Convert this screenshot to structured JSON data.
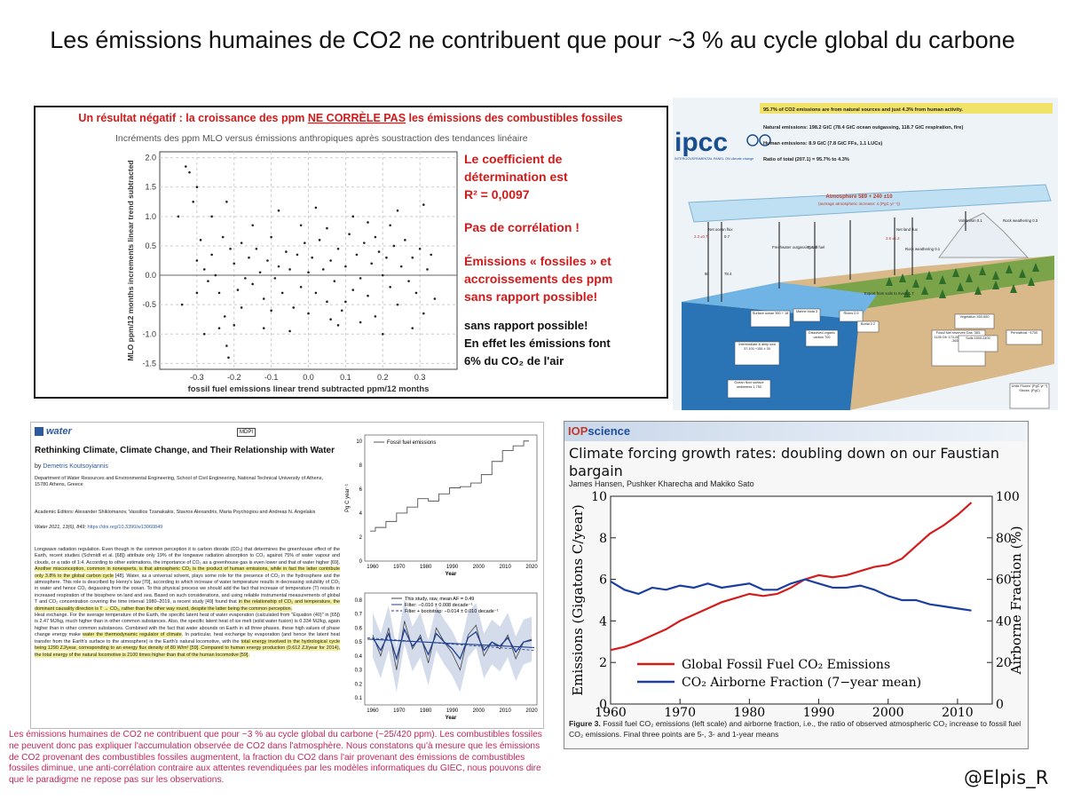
{
  "page_title": "Les émissions humaines de CO2 ne contribuent que pour ~3 % au cycle global du carbone",
  "colors": {
    "red_text": "#d11a1a",
    "pink_text": "#c0265a",
    "iop_red": "#d31d1d",
    "iop_blue": "#1b3fa0",
    "water_blue": "#2c5aa0"
  },
  "scatter_panel": {
    "heading_part1": "Un résultat négatif : la croissance des ppm ",
    "heading_underlined": "NE CORRÈLE PAS",
    "heading_part2": " les émissions des combustibles fossiles",
    "subheading": "Incréments des ppm MLO   versus émissions anthropiques après soustraction des tendances linéaire",
    "red_notes": [
      "Le coefficient de",
      "détermination est",
      "R² = 0,0097",
      "Pas de corrélation !",
      "Émissions « fossiles » et",
      "accroissements des ppm",
      "sans rapport possible!"
    ],
    "black_notes": [
      "sans rapport possible!",
      "En effet les émissions font",
      "6% du CO₂ de l'air"
    ]
  },
  "ipcc_panel": {
    "logo": "ipcc",
    "logo_sub": "INTERGOVERNMENTAL PANEL ON climate change",
    "lines": [
      "95.7% of CO2 emissions are from natural sources and just 4.3% from human activity.",
      "Natural emissions:  198.2 GtC (78.4 GtC ocean outgassing, 118.7 GtC respiration, fire)",
      "Human emissions:   8.9 GtC (7.8 GtC FFs, 1.1 LUCs)",
      "Ratio of total (207.1) = 95.7% to 4.3%"
    ],
    "atmosphere_label": "Atmosphere 589 + 240 ±10",
    "atmosphere_sub": "(average atmospheric increase: 4 (PgC yr⁻¹))",
    "box_labels": [
      "Surface ocean 900 + 18",
      "Intermediate & deep sea 37,100 +155 ± 30",
      "Ocean floor surface sediments 1,750",
      "Marine biota 3",
      "Dissolved organic carbon 700",
      "Rivers 0.9",
      "Burial 0.2",
      "Fossil fuel reserves Gas: 383-1135 Oil: 173-264 Coal: 446-541 -365 ± 30",
      "Vegetation 450-650",
      "Soils 1500-2400",
      "Permafrost ~1700",
      "Units Fluxes: (PgC yr⁻¹) Stocks: (PgC)"
    ],
    "flux_labels": [
      "Net ocean flux",
      "2.3 ±0.7",
      "0.7",
      "80",
      "78.4",
      "Fossil fuel",
      "Net land flux",
      "2.6 ±1.2",
      "Volcanism 0.1",
      "Rock weathering 0.3",
      "Freshwater outgassing 1.0",
      "Export from soils to rivers 1.7",
      "Rock weathering 0.1"
    ]
  },
  "water_panel": {
    "journal": "water",
    "publisher": "MDPI",
    "title": "Rethinking Climate, Climate Change, and Their Relationship with Water",
    "author_prefix": "by ",
    "author": "Demetris Koutsoyiannis",
    "affiliation": "Department of Water Resources and Environmental Engineering, School of Civil Engineering, National Technical University of Athens, 15780 Athens, Greece",
    "editors": "Academic Editors: Alexander Shiklomanov, Vassilios Tzanakakis, Stavros Alexandris, Maria Psychogiou and Andreas N. Angelakis",
    "citation_prefix": "Water 2021, 13(6), 849; ",
    "citation_link": "https://doi.org/10.3390/w13060849",
    "body_1": "Longwave radiation regulation. Even though in the common perception it is carbon dioxide (CO₂) that determines the greenhouse effect of the Earth, recent studies (Schmidt et al. [68]) attribute only 19% of the longwave radiation absorption to CO₂ against 75% of water vapour and clouds, or a ratio of 1:4. According to other estimations, the importance of CO₂ as a greenhouse gas is even lower and that of water higher [69]. ",
    "body_1_hl": "Another misconception, common in nonexperts, is that atmospheric CO₂ is the product of human emissions, while in fact the latter contribute only 3.8% to the global carbon cycle",
    "body_1_end": " [48]. Water, as a universal solvent, plays some role for the presence of CO₂ in the hydrosphere and the atmosphere. This role is described by Henry's law [70], according to which increase of water temperature results in decreasing solubility of CO₂ in water and hence CO₂ degassing from the ocean. To this physical process we should add the fact that increase of temperature (T) results in increased respiration of the biosphere on land and sea. Based on such considerations, and using reliable instrumental measurements of global T and CO₂ concentration covering the time interval 1980–2019, a recent study [49] found that ",
    "body_2_hl": "in the relationship of CO₂ and temperature, the dominant causality direction is T → CO₂, rather than the other way round, despite the latter being the common perception.",
    "body_3": "Heat exchange. For the average temperature of the Earth, the specific latent heat of water evaporation (calculated from \"Equation (40)\" in [65]) is 2.47 MJ/kg, much higher than in other common substances. Also, the specific latent heat of ice melt (solid water fusion) is 0.334 MJ/kg, again higher than in other common substances. Combined with the fact that water abounds on Earth in all three phases, these high values of phase change energy make ",
    "body_3_hl": "water the thermodynamic regulator of climate",
    "body_3_end": ". In particular, heat exchange by evaporation (and hence the latent heat transfer from the Earth's surface to the atmosphere) is the Earth's natural locomotive, with the ",
    "body_4_hl": "total energy involved in the hydrological cycle being 1290 ZJ/year, corresponding to an energy flux density of 80 W/m² [59]. Compared to human energy production (0.612 ZJ/year for 2014), the total energy of the natural locomotive is 2100 times higher than that of the human locomotive [59].",
    "top_chart": {
      "legend": "Fossil fuel emissions",
      "ylabel": "Pg C year⁻¹",
      "xlabel": "Year",
      "yticks": [
        "0",
        "2",
        "4",
        "6",
        "8",
        "10"
      ],
      "xticks": [
        "1960",
        "1970",
        "1980",
        "1990",
        "2000",
        "2010",
        "2020"
      ]
    },
    "bottom_chart": {
      "legend": [
        "This study, raw, mean AF = 0.49",
        "Filter: −0.010 ± 0.008 decade⁻¹",
        "Filter + bootstrap: −0.014 ± 0.010 decade⁻¹"
      ],
      "xlabel": "Year",
      "yticks": [
        "0.1",
        "0.2",
        "0.3",
        "0.4",
        "0.5",
        "0.6",
        "0.7",
        "0.8"
      ],
      "xticks": [
        "1960",
        "1970",
        "1980",
        "1990",
        "2000",
        "2010",
        "2020"
      ]
    }
  },
  "iop_panel": {
    "logo_pre": "IOP",
    "logo_post": "science",
    "title": "Climate forcing growth rates: doubling down on our Faustian bargain",
    "authors": "James Hansen, Pushker Kharecha and Makiko Sato",
    "legend_red": "Global Fossil Fuel CO₂ Emissions",
    "legend_blue": "CO₂ Airborne Fraction (7−year mean)",
    "ylabel_left": "Emissions (Gigatons C/year)",
    "ylabel_right": "Airborne Fraction (%)",
    "caption_bold": "Figure 3.",
    "caption": " Fossil fuel CO₂ emissions (left scale) and airborne fraction, i.e., the ratio of observed atmospheric CO₂ increase to fossil fuel CO₂ emissions. Final three points are 5-, 3- and 1-year means"
  },
  "chart_data": [
    {
      "type": "scatter",
      "title": "Incréments des ppm MLO   versus émissions anthropiques après soustraction des tendances linéaire",
      "xlabel": "fossil fuel emissions linear trend subtracted ppm/12 months",
      "ylabel": "MLO ppm/12 months increments linear trend subtracted",
      "xlim": [
        -0.4,
        0.4
      ],
      "ylim": [
        -1.6,
        2.1
      ],
      "xticks": [
        "-0.3",
        "-0.2",
        "-0.1",
        "0.0",
        "0.1",
        "0.2",
        "0.3"
      ],
      "yticks": [
        "-1.5",
        "-1.0",
        "-0.5",
        "0.0",
        "0.5",
        "1.0",
        "1.5",
        "2.0"
      ],
      "points": [
        [
          -0.33,
          1.85
        ],
        [
          -0.32,
          1.75
        ],
        [
          -0.31,
          1.25
        ],
        [
          -0.3,
          1.5
        ],
        [
          -0.29,
          0.6
        ],
        [
          -0.3,
          0.25
        ],
        [
          -0.28,
          0.1
        ],
        [
          -0.27,
          -0.1
        ],
        [
          -0.26,
          0.35
        ],
        [
          -0.25,
          0.0
        ],
        [
          -0.24,
          -0.3
        ],
        [
          -0.23,
          0.65
        ],
        [
          -0.225,
          -0.7
        ],
        [
          -0.22,
          -1.2
        ],
        [
          -0.215,
          -1.4
        ],
        [
          -0.21,
          0.45
        ],
        [
          -0.2,
          0.2
        ],
        [
          -0.19,
          -0.25
        ],
        [
          -0.18,
          0.55
        ],
        [
          -0.17,
          -0.05
        ],
        [
          -0.16,
          0.3
        ],
        [
          -0.15,
          -0.15
        ],
        [
          -0.14,
          0.45
        ],
        [
          -0.13,
          0.05
        ],
        [
          -0.12,
          -0.4
        ],
        [
          -0.11,
          0.25
        ],
        [
          -0.1,
          0.65
        ],
        [
          -0.09,
          -0.05
        ],
        [
          -0.08,
          0.15
        ],
        [
          -0.07,
          -0.3
        ],
        [
          -0.06,
          0.4
        ],
        [
          -0.05,
          0.1
        ],
        [
          -0.04,
          -0.55
        ],
        [
          -0.03,
          0.35
        ],
        [
          -0.02,
          -0.2
        ],
        [
          -0.01,
          0.55
        ],
        [
          0.0,
          0.05
        ],
        [
          0.0,
          -0.65
        ],
        [
          0.01,
          0.3
        ],
        [
          0.02,
          -0.3
        ],
        [
          0.03,
          0.6
        ],
        [
          0.04,
          0.1
        ],
        [
          0.05,
          -0.45
        ],
        [
          0.06,
          0.25
        ],
        [
          0.07,
          -0.1
        ],
        [
          0.08,
          0.45
        ],
        [
          0.09,
          -0.6
        ],
        [
          0.1,
          0.15
        ],
        [
          0.11,
          0.7
        ],
        [
          0.12,
          -0.25
        ],
        [
          0.13,
          0.35
        ],
        [
          0.14,
          -0.05
        ],
        [
          0.15,
          0.55
        ],
        [
          0.16,
          -0.35
        ],
        [
          0.17,
          0.2
        ],
        [
          0.18,
          -0.7
        ],
        [
          0.19,
          0.4
        ],
        [
          0.2,
          0.0
        ],
        [
          0.21,
          0.3
        ],
        [
          0.22,
          -0.2
        ],
        [
          0.23,
          0.5
        ],
        [
          0.24,
          -0.5
        ],
        [
          0.25,
          0.15
        ],
        [
          0.26,
          0.6
        ],
        [
          0.27,
          -0.1
        ],
        [
          0.28,
          0.3
        ],
        [
          0.29,
          -0.3
        ],
        [
          0.3,
          0.45
        ],
        [
          0.31,
          -0.65
        ],
        [
          0.32,
          0.1
        ],
        [
          0.33,
          0.35
        ],
        [
          -0.35,
          1.0
        ],
        [
          -0.34,
          -0.5
        ],
        [
          -0.28,
          -1.0
        ],
        [
          -0.26,
          1.0
        ],
        [
          -0.22,
          1.25
        ],
        [
          -0.2,
          -0.85
        ],
        [
          -0.15,
          0.85
        ],
        [
          -0.12,
          -0.9
        ],
        [
          -0.08,
          1.1
        ],
        [
          -0.05,
          -0.95
        ],
        [
          0.02,
          1.15
        ],
        [
          0.05,
          0.8
        ],
        [
          0.08,
          -0.85
        ],
        [
          0.12,
          1.0
        ],
        [
          0.16,
          0.9
        ],
        [
          0.2,
          -1.0
        ],
        [
          0.24,
          1.1
        ],
        [
          0.28,
          -0.9
        ],
        [
          0.31,
          1.2
        ],
        [
          0.34,
          -0.4
        ],
        [
          -0.18,
          -0.55
        ],
        [
          -0.1,
          -0.6
        ],
        [
          0.06,
          -0.75
        ],
        [
          0.14,
          -0.8
        ],
        [
          0.22,
          0.85
        ],
        [
          -0.24,
          -0.9
        ],
        [
          -0.3,
          -0.3
        ],
        [
          0.1,
          -0.45
        ],
        [
          -0.02,
          0.85
        ],
        [
          0.18,
          0.65
        ]
      ]
    },
    {
      "type": "line",
      "title": "",
      "xlabel": "Year",
      "ylabel": "Pg C year⁻¹",
      "xlim": [
        1957,
        2022
      ],
      "ylim": [
        0,
        10.5
      ],
      "series": [
        {
          "name": "Fossil fuel emissions",
          "x": [
            1959,
            1963,
            1967,
            1971,
            1975,
            1979,
            1983,
            1987,
            1991,
            1995,
            1999,
            2003,
            2007,
            2011,
            2015,
            2019
          ],
          "values": [
            2.5,
            2.8,
            3.3,
            4.0,
            4.5,
            5.2,
            5.0,
            5.6,
            6.1,
            6.2,
            6.5,
            7.2,
            8.3,
            9.2,
            9.6,
            10.0
          ]
        }
      ]
    },
    {
      "type": "line",
      "title": "",
      "xlabel": "Year",
      "ylabel": "",
      "xlim": [
        1957,
        2022
      ],
      "ylim": [
        0.05,
        0.85
      ],
      "series": [
        {
          "name": "This study, raw, mean AF = 0.49",
          "x": [
            1960,
            1963,
            1966,
            1969,
            1972,
            1975,
            1978,
            1981,
            1984,
            1987,
            1990,
            1993,
            1996,
            1999,
            2002,
            2005,
            2008,
            2011,
            2014,
            2017,
            2020
          ],
          "values": [
            0.55,
            0.4,
            0.6,
            0.3,
            0.65,
            0.45,
            0.55,
            0.35,
            0.6,
            0.5,
            0.42,
            0.3,
            0.55,
            0.62,
            0.4,
            0.5,
            0.45,
            0.55,
            0.38,
            0.5,
            0.52
          ]
        }
      ]
    },
    {
      "type": "line",
      "title": "",
      "xlabel": "",
      "ylabel": "Emissions (Gigatons C/year)",
      "ylabel_right": "Airborne Fraction (%)",
      "xlim": [
        1960,
        2015
      ],
      "ylim": [
        0,
        10
      ],
      "ylim_right": [
        0,
        100
      ],
      "xticks": [
        "1960",
        "1970",
        "1980",
        "1990",
        "2000",
        "2010"
      ],
      "yticks": [
        "0",
        "2",
        "4",
        "6",
        "8",
        "10"
      ],
      "yticks_right": [
        "0",
        "20",
        "40",
        "60",
        "80",
        "100"
      ],
      "legend": "lower-left",
      "series": [
        {
          "name": "Global Fossil Fuel CO₂ Emissions",
          "axis": "left",
          "x": [
            1960,
            1962,
            1964,
            1966,
            1968,
            1970,
            1972,
            1974,
            1976,
            1978,
            1980,
            1982,
            1984,
            1986,
            1988,
            1990,
            1992,
            1994,
            1996,
            1998,
            2000,
            2002,
            2004,
            2006,
            2008,
            2010,
            2012
          ],
          "values": [
            2.6,
            2.75,
            3.0,
            3.3,
            3.6,
            4.0,
            4.3,
            4.6,
            4.9,
            5.1,
            5.3,
            5.2,
            5.3,
            5.6,
            6.0,
            6.2,
            6.1,
            6.2,
            6.4,
            6.6,
            6.7,
            7.0,
            7.6,
            8.2,
            8.6,
            9.1,
            9.7
          ]
        },
        {
          "name": "CO₂ Airborne Fraction (7−year mean)",
          "axis": "right",
          "x": [
            1960,
            1962,
            1964,
            1966,
            1968,
            1970,
            1972,
            1974,
            1976,
            1978,
            1980,
            1982,
            1984,
            1986,
            1988,
            1990,
            1992,
            1994,
            1996,
            1998,
            2000,
            2002,
            2004,
            2006,
            2008,
            2010,
            2012
          ],
          "values": [
            59,
            55,
            53,
            56,
            55,
            57,
            56,
            58,
            56,
            57,
            58,
            55,
            55,
            58,
            60,
            58,
            56,
            56,
            57,
            55,
            52,
            50,
            50,
            48,
            47,
            46,
            45
          ]
        }
      ]
    }
  ],
  "bottom_text": "Les émissions humaines de CO2 ne contribuent que pour ~3 % au cycle global du carbone (~25/420 ppm). Les combustibles fossiles ne peuvent donc pas expliquer l'accumulation observée de CO2 dans l'atmosphère. Nous constatons qu'à mesure que les émissions de CO2 provenant des combustibles fossiles augmentent, la fraction du CO2 dans l'air provenant des émissions de combustibles fossiles diminue, une anti-corrélation contraire aux attentes revendiquées par les modèles informatiques du GIEC, nous pouvons dire que le paradigme ne repose pas sur les observations.",
  "handle": "@Elpis_R"
}
